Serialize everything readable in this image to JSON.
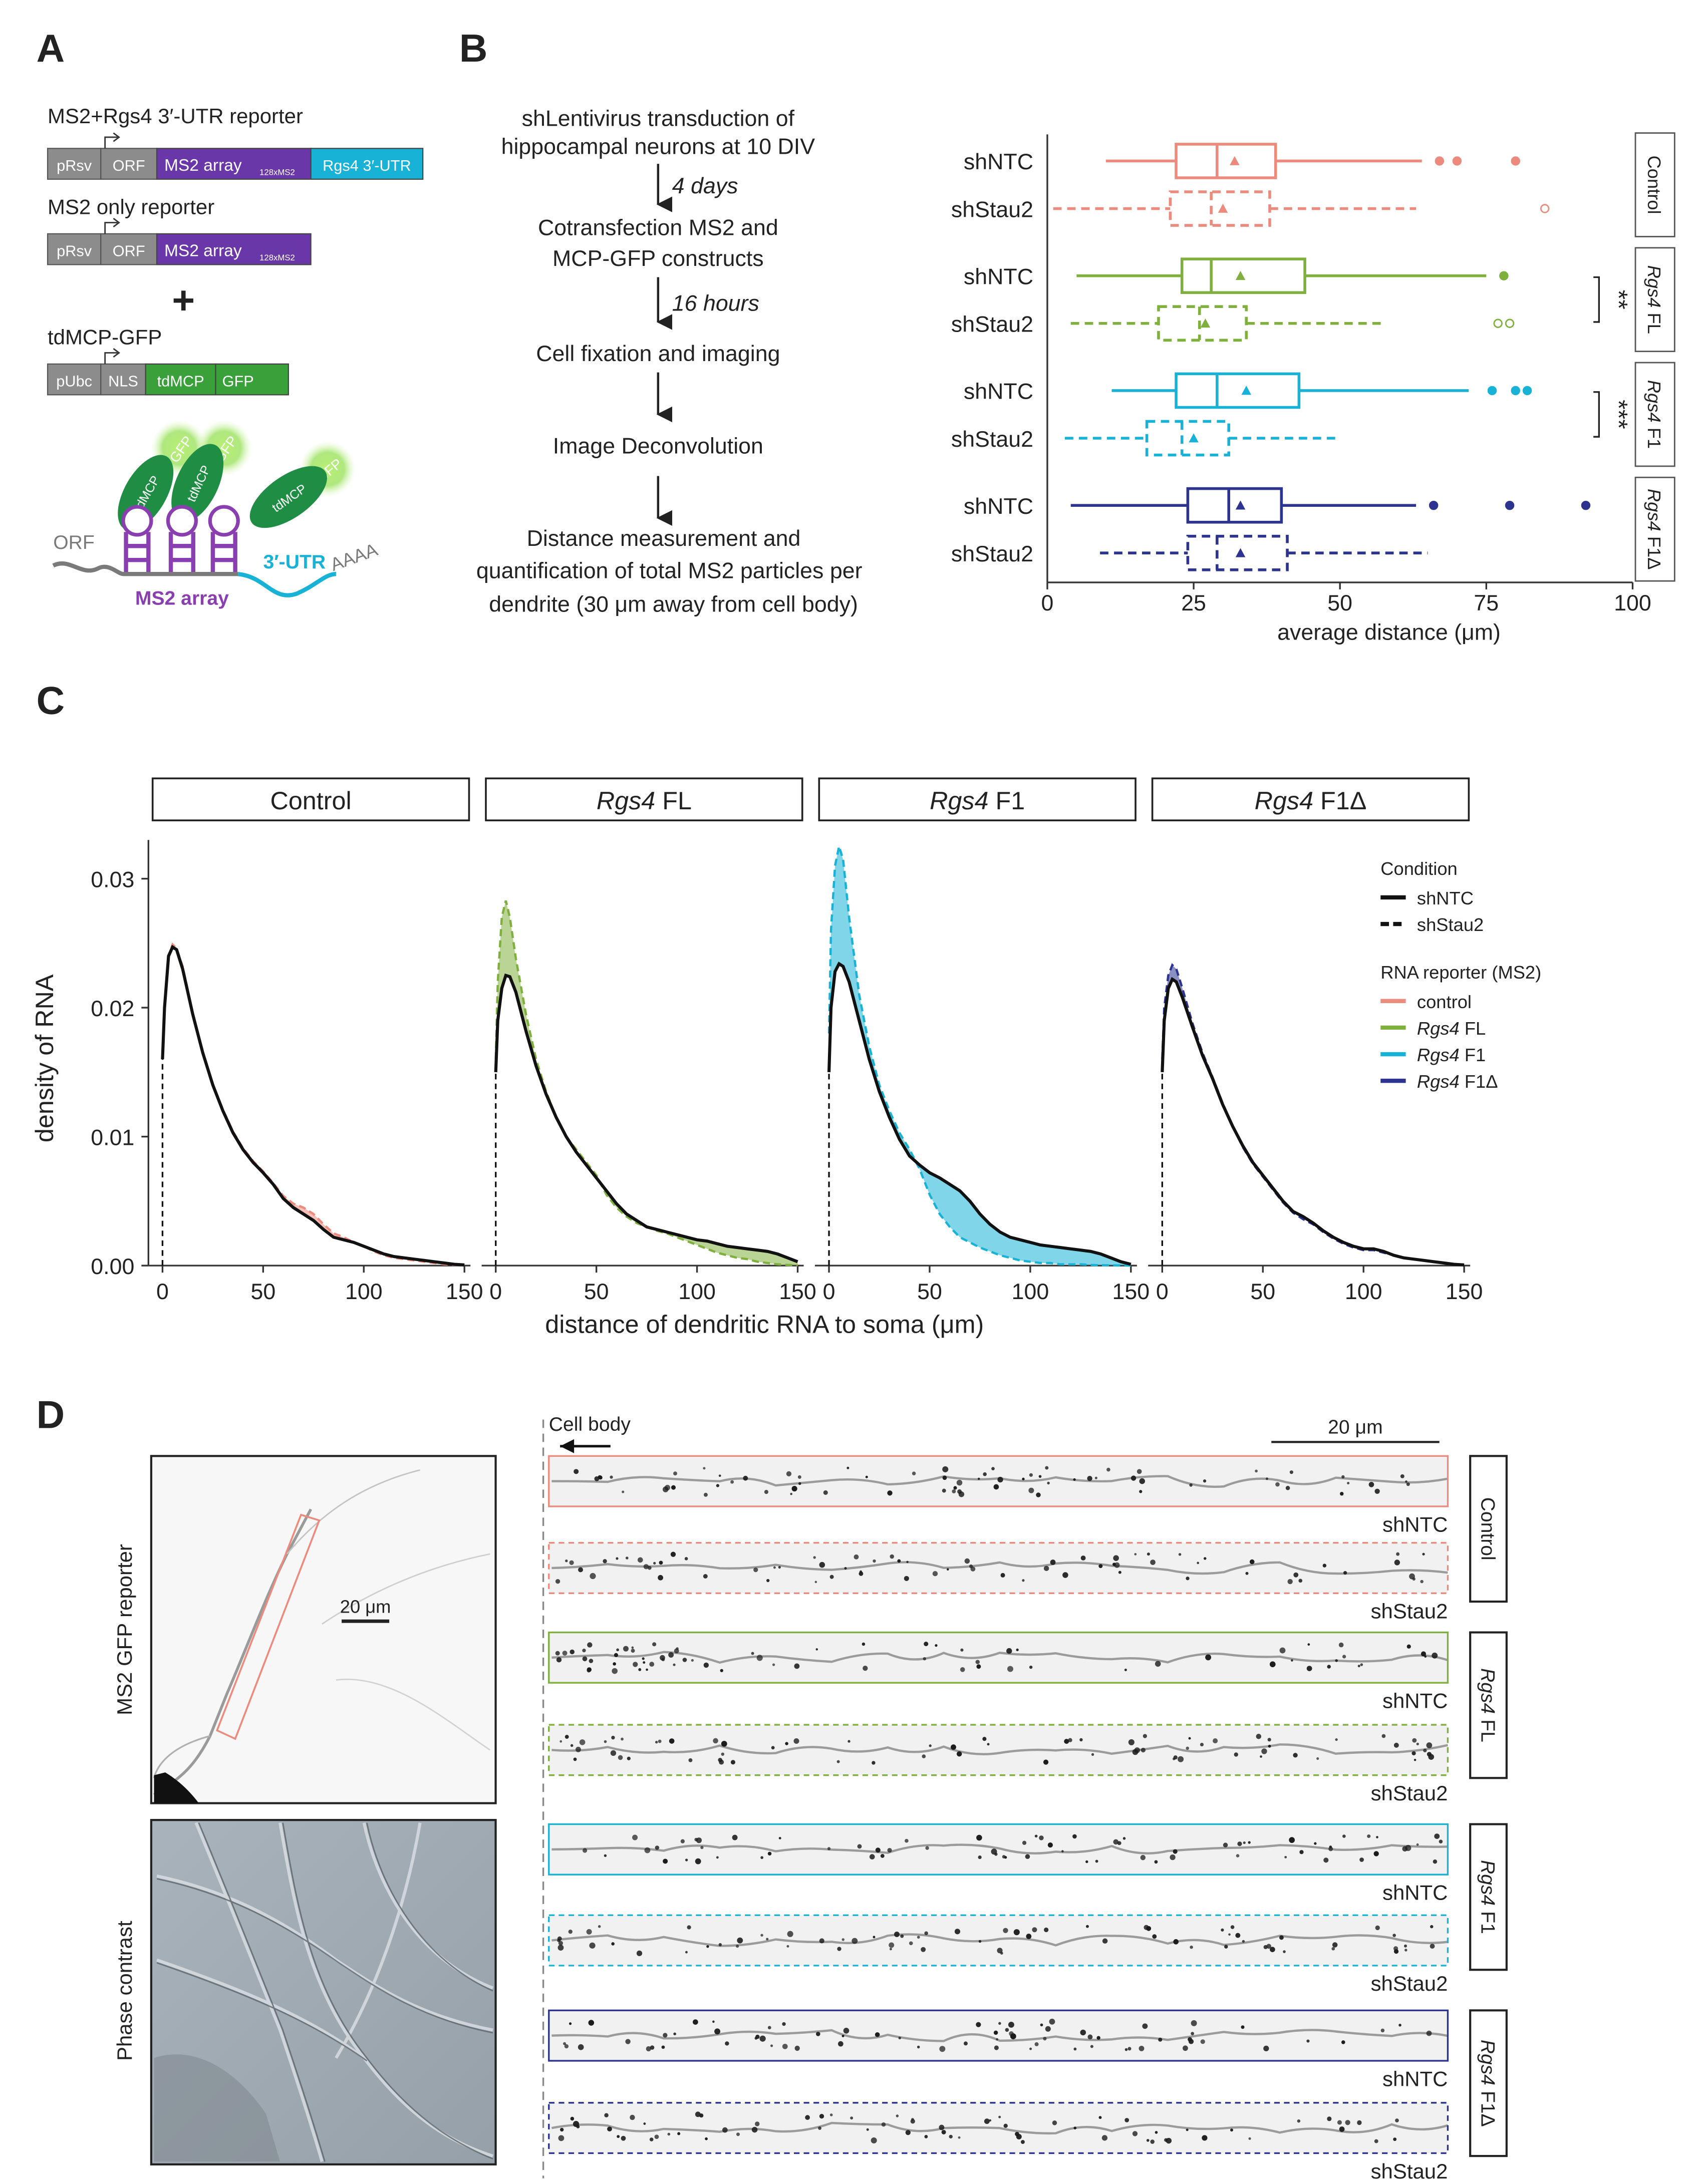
{
  "colors": {
    "control": "#ec8b7d",
    "rgs4_fl": "#7fb03e",
    "rgs4_f1": "#18b2d6",
    "rgs4_f1d": "#2c3490",
    "dark": "#222222",
    "grey_box": "#8c8c8c",
    "purple": "#6a37a8",
    "green_fp": "#3aa03a"
  },
  "panel_labels": {
    "a": "A",
    "b": "B",
    "c": "C",
    "d": "D"
  },
  "panel_a": {
    "reporter1_title": "MS2+Rgs4 3′-UTR reporter",
    "reporter2_title": "MS2 only reporter",
    "reporter3_title": "tdMCP-GFP",
    "plus": "+",
    "boxes": {
      "prsv": "pRsv",
      "orf": "ORF",
      "ms2_array": "MS2 array",
      "ms2_sub": "128xMS2",
      "rgs4_utr": "Rgs4 3′-UTR",
      "pubc": "pUbc",
      "nls": "NLS",
      "tdmcp": "tdMCP",
      "gfp": "GFP"
    },
    "schematic": {
      "orf": "ORF",
      "ms2_array": "MS2 array",
      "utr": "3′-UTR",
      "polya": "AAAA",
      "tdmcp": "tdMCP",
      "gfp": "GFP"
    }
  },
  "panel_b_flow": {
    "step1_line1": "shLentivirus transduction of",
    "step1_line2": "hippocampal neurons at 10 DIV",
    "time1": "4 days",
    "step2_line1": "Cotransfection MS2 and",
    "step2_line2": "MCP-GFP constructs",
    "time2": "16 hours",
    "step3": "Cell fixation and imaging",
    "step4": "Image Deconvolution",
    "step5_line1": "Distance measurement and",
    "step5_line2": "quantification of total MS2 particles per",
    "step5_line3": "dendrite (30 μm away from cell body)"
  },
  "panel_b_box": {
    "xlabel": "average distance (μm)",
    "xticks": [
      "0",
      "25",
      "50",
      "75",
      "100"
    ],
    "facets": [
      "Control",
      "Rgs4 FL",
      "Rgs4 F1",
      "Rgs4 F1Δ"
    ],
    "significance": [
      "**",
      "***"
    ]
  },
  "panel_c": {
    "ylabel": "density of RNA",
    "xlabel": "distance of dendritic RNA to soma (μm)",
    "yticks": [
      "0.00",
      "0.01",
      "0.02",
      "0.03"
    ],
    "xticks": [
      "0",
      "50",
      "100",
      "150"
    ],
    "facet_italic": [
      "",
      "Rgs4",
      "Rgs4",
      "Rgs4"
    ],
    "facet_suffix": [
      "Control",
      " FL",
      " F1",
      " F1Δ"
    ],
    "legend": {
      "condition_title": "Condition",
      "shntc": "shNTC",
      "shstau2": "shStau2",
      "reporter_title": "RNA reporter (MS2)",
      "control": "control",
      "rgs4": "Rgs4",
      "fl": " FL",
      "f1": " F1",
      "f1d": " F1Δ"
    }
  },
  "panel_d": {
    "ylabel_top": "MS2 GFP reporter",
    "ylabel_bottom": "Phase contrast",
    "scale_left": "20 μm",
    "cell_body": "Cell body",
    "scale_right": "20 μm",
    "strip_labels": [
      "shNTC",
      "shStau2",
      "shNTC",
      "shStau2",
      "shNTC",
      "shStau2",
      "shNTC",
      "shStau2"
    ],
    "facets": [
      "Control",
      "Rgs4 FL",
      "Rgs4 F1",
      "Rgs4 F1Δ"
    ]
  },
  "chart_data": [
    {
      "type": "boxplot",
      "title": "",
      "xlabel": "average distance (μm)",
      "ylabel": "",
      "xlim": [
        0,
        100
      ],
      "xticks": [
        0,
        25,
        50,
        75,
        100
      ],
      "groups": [
        {
          "facet": "Control",
          "color": "#ec8b7d",
          "rows": [
            {
              "condition": "shNTC",
              "style": "solid",
              "whisker_low": 10,
              "q1": 22,
              "median": 29,
              "q3": 39,
              "whisker_high": 64,
              "mean": 32,
              "outliers": [
                67,
                70,
                80
              ]
            },
            {
              "condition": "shStau2",
              "style": "dashed",
              "whisker_low": 1,
              "q1": 21,
              "median": 28,
              "q3": 38,
              "whisker_high": 63,
              "mean": 30,
              "outliers": [
                85
              ]
            }
          ]
        },
        {
          "facet": "Rgs4 FL",
          "color": "#7fb03e",
          "rows": [
            {
              "condition": "shNTC",
              "style": "solid",
              "whisker_low": 5,
              "q1": 23,
              "median": 28,
              "q3": 44,
              "whisker_high": 75,
              "mean": 33,
              "outliers": [
                78
              ]
            },
            {
              "condition": "shStau2",
              "style": "dashed",
              "whisker_low": 4,
              "q1": 19,
              "median": 26,
              "q3": 34,
              "whisker_high": 57,
              "mean": 27,
              "outliers": [
                77,
                79
              ]
            }
          ]
        },
        {
          "facet": "Rgs4 F1",
          "color": "#18b2d6",
          "rows": [
            {
              "condition": "shNTC",
              "style": "solid",
              "whisker_low": 11,
              "q1": 22,
              "median": 29,
              "q3": 43,
              "whisker_high": 72,
              "mean": 34,
              "outliers": [
                76,
                80,
                82
              ]
            },
            {
              "condition": "shStau2",
              "style": "dashed",
              "whisker_low": 3,
              "q1": 17,
              "median": 23,
              "q3": 31,
              "whisker_high": 50,
              "mean": 25,
              "outliers": []
            }
          ]
        },
        {
          "facet": "Rgs4 F1Δ",
          "color": "#2c3490",
          "rows": [
            {
              "condition": "shNTC",
              "style": "solid",
              "whisker_low": 4,
              "q1": 24,
              "median": 31,
              "q3": 40,
              "whisker_high": 63,
              "mean": 33,
              "outliers": [
                66,
                79,
                92
              ]
            },
            {
              "condition": "shStau2",
              "style": "dashed",
              "whisker_low": 9,
              "q1": 24,
              "median": 29,
              "q3": 41,
              "whisker_high": 65,
              "mean": 33,
              "outliers": []
            }
          ]
        }
      ],
      "significance": [
        {
          "facet": "Rgs4 FL",
          "label": "**"
        },
        {
          "facet": "Rgs4 F1",
          "label": "***"
        }
      ]
    },
    {
      "type": "area",
      "title": "",
      "xlabel": "distance of dendritic RNA to soma (μm)",
      "ylabel": "density of RNA",
      "xlim": [
        -7,
        153
      ],
      "ylim": [
        0,
        0.033
      ],
      "xticks": [
        0,
        50,
        100,
        150
      ],
      "yticks": [
        0.0,
        0.01,
        0.02,
        0.03
      ],
      "x": [
        0,
        1,
        3,
        5,
        7,
        10,
        15,
        20,
        25,
        30,
        35,
        40,
        45,
        50,
        55,
        60,
        65,
        70,
        75,
        80,
        85,
        90,
        95,
        100,
        105,
        110,
        115,
        120,
        125,
        130,
        135,
        140,
        145,
        150
      ],
      "facets": [
        {
          "name": "Control",
          "color": "#ec8b7d",
          "shNTC": [
            0.016,
            0.02,
            0.024,
            0.0247,
            0.0245,
            0.023,
            0.0195,
            0.0165,
            0.014,
            0.012,
            0.0103,
            0.009,
            0.008,
            0.0072,
            0.0063,
            0.0052,
            0.0045,
            0.004,
            0.0035,
            0.0028,
            0.0022,
            0.002,
            0.0018,
            0.0015,
            0.0012,
            0.0009,
            0.0007,
            0.0006,
            0.0005,
            0.0004,
            0.0003,
            0.0002,
            0.0001,
            5e-05
          ],
          "shStau2": [
            0.016,
            0.02,
            0.024,
            0.0249,
            0.0246,
            0.0232,
            0.0196,
            0.0166,
            0.0141,
            0.0121,
            0.0104,
            0.0091,
            0.0081,
            0.0073,
            0.0064,
            0.0054,
            0.0048,
            0.0045,
            0.004,
            0.0032,
            0.0025,
            0.0022,
            0.0018,
            0.0015,
            0.0011,
            0.0008,
            0.0006,
            0.0005,
            0.0004,
            0.0003,
            0.0002,
            0.0001,
            5e-05,
            3e-05
          ]
        },
        {
          "name": "Rgs4 FL",
          "color": "#7fb03e",
          "shNTC": [
            0.015,
            0.019,
            0.0215,
            0.0225,
            0.0224,
            0.0212,
            0.0182,
            0.0155,
            0.0133,
            0.0115,
            0.01,
            0.0088,
            0.0078,
            0.0068,
            0.0058,
            0.0048,
            0.004,
            0.0035,
            0.003,
            0.0028,
            0.0026,
            0.0024,
            0.0022,
            0.002,
            0.0019,
            0.0017,
            0.0015,
            0.0014,
            0.0013,
            0.0012,
            0.0011,
            0.0009,
            0.0006,
            0.0003
          ],
          "shStau2": [
            0.016,
            0.022,
            0.027,
            0.0283,
            0.027,
            0.0238,
            0.0195,
            0.016,
            0.0135,
            0.0115,
            0.01,
            0.009,
            0.008,
            0.007,
            0.0055,
            0.0045,
            0.0038,
            0.0033,
            0.003,
            0.0027,
            0.0025,
            0.0022,
            0.0019,
            0.0016,
            0.0013,
            0.001,
            0.0008,
            0.0006,
            0.0005,
            0.0003,
            0.0002,
            0.0001,
            5e-05,
            2e-05
          ]
        },
        {
          "name": "Rgs4 F1",
          "color": "#18b2d6",
          "shNTC": [
            0.015,
            0.02,
            0.0228,
            0.0234,
            0.0232,
            0.022,
            0.019,
            0.016,
            0.0135,
            0.0115,
            0.0098,
            0.0085,
            0.0078,
            0.0072,
            0.0068,
            0.0063,
            0.0058,
            0.005,
            0.004,
            0.0032,
            0.0026,
            0.0022,
            0.002,
            0.0018,
            0.0016,
            0.0015,
            0.0014,
            0.0013,
            0.0012,
            0.0011,
            0.0009,
            0.0006,
            0.0003,
            0.0001
          ],
          "shStau2": [
            0.018,
            0.026,
            0.031,
            0.0325,
            0.0315,
            0.027,
            0.021,
            0.017,
            0.014,
            0.012,
            0.0103,
            0.009,
            0.0075,
            0.0055,
            0.004,
            0.003,
            0.0022,
            0.0018,
            0.0014,
            0.0011,
            0.0008,
            0.0006,
            0.0004,
            0.0003,
            0.0002,
            0.0002,
            0.0001,
            0.0001,
            0.0001,
            5e-05,
            3e-05,
            2e-05,
            1e-05,
            0.0
          ]
        },
        {
          "name": "Rgs4 F1Δ",
          "color": "#2c3490",
          "shNTC": [
            0.015,
            0.019,
            0.0215,
            0.0222,
            0.022,
            0.0208,
            0.0185,
            0.0163,
            0.0145,
            0.0125,
            0.0108,
            0.0093,
            0.008,
            0.007,
            0.006,
            0.005,
            0.0042,
            0.0038,
            0.0033,
            0.0027,
            0.0022,
            0.0018,
            0.0015,
            0.0013,
            0.0013,
            0.0011,
            0.0008,
            0.0006,
            0.0005,
            0.0004,
            0.0003,
            0.0002,
            0.0001,
            5e-05
          ],
          "shStau2": [
            0.016,
            0.02,
            0.0225,
            0.0233,
            0.023,
            0.0215,
            0.0188,
            0.0165,
            0.0146,
            0.0126,
            0.0108,
            0.0092,
            0.0079,
            0.0069,
            0.0059,
            0.0049,
            0.0041,
            0.0036,
            0.0032,
            0.0026,
            0.0021,
            0.0017,
            0.0014,
            0.0012,
            0.0012,
            0.001,
            0.0008,
            0.0006,
            0.0005,
            0.0004,
            0.0003,
            0.0002,
            0.0001,
            5e-05
          ]
        }
      ],
      "legend": {
        "position": "right",
        "conditions": [
          "shNTC",
          "shStau2"
        ],
        "reporters": [
          "control",
          "Rgs4 FL",
          "Rgs4 F1",
          "Rgs4 F1Δ"
        ]
      }
    }
  ]
}
